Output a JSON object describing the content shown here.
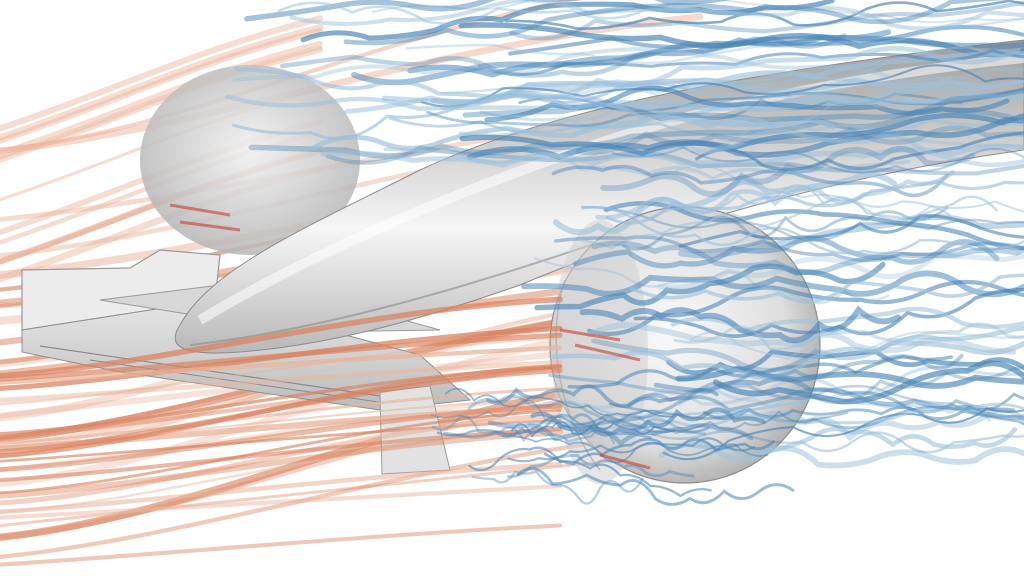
{
  "scene": {
    "subject": "cfd-race-car-front-streamlines",
    "colors": {
      "background": "#ffffff",
      "body": "#d8d8d8",
      "body_highlight": "#f4f4f4",
      "body_shadow": "#9a9a9a",
      "stream_warm": "#d9825e",
      "stream_warm_light": "#eab39b",
      "stream_cool": "#4a86b8",
      "stream_cool_light": "#9cc1dc",
      "stream_hot": "#c84030"
    }
  }
}
